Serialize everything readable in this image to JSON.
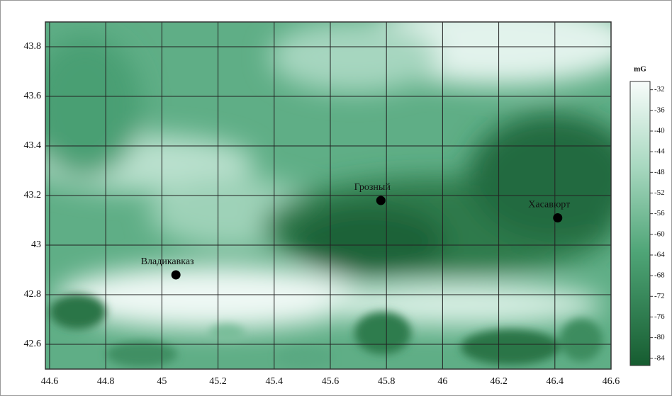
{
  "chart_data": {
    "type": "heatmap",
    "xlim": [
      44.585,
      46.6
    ],
    "ylim": [
      42.5,
      43.9
    ],
    "xticks": [
      44.6,
      44.8,
      45,
      45.2,
      45.4,
      45.6,
      45.8,
      46,
      46.2,
      46.4,
      46.6
    ],
    "yticks": [
      42.6,
      42.8,
      43,
      43.2,
      43.4,
      43.6,
      43.8
    ],
    "grid": true,
    "points": {
      "names": [
        "Владикавказ",
        "Грозный",
        "Хасавюрт"
      ],
      "x": [
        45.05,
        45.78,
        46.41
      ],
      "y": [
        42.88,
        43.18,
        43.11
      ],
      "color": "#000000"
    },
    "colorbar": {
      "label": "mG",
      "lim": [
        -85.4,
        -30.4
      ],
      "ticks": [
        -32,
        -36,
        -40,
        -44,
        -48,
        -52,
        -56,
        -60,
        -64,
        -68,
        -72,
        -76,
        -80,
        -84
      ]
    }
  }
}
